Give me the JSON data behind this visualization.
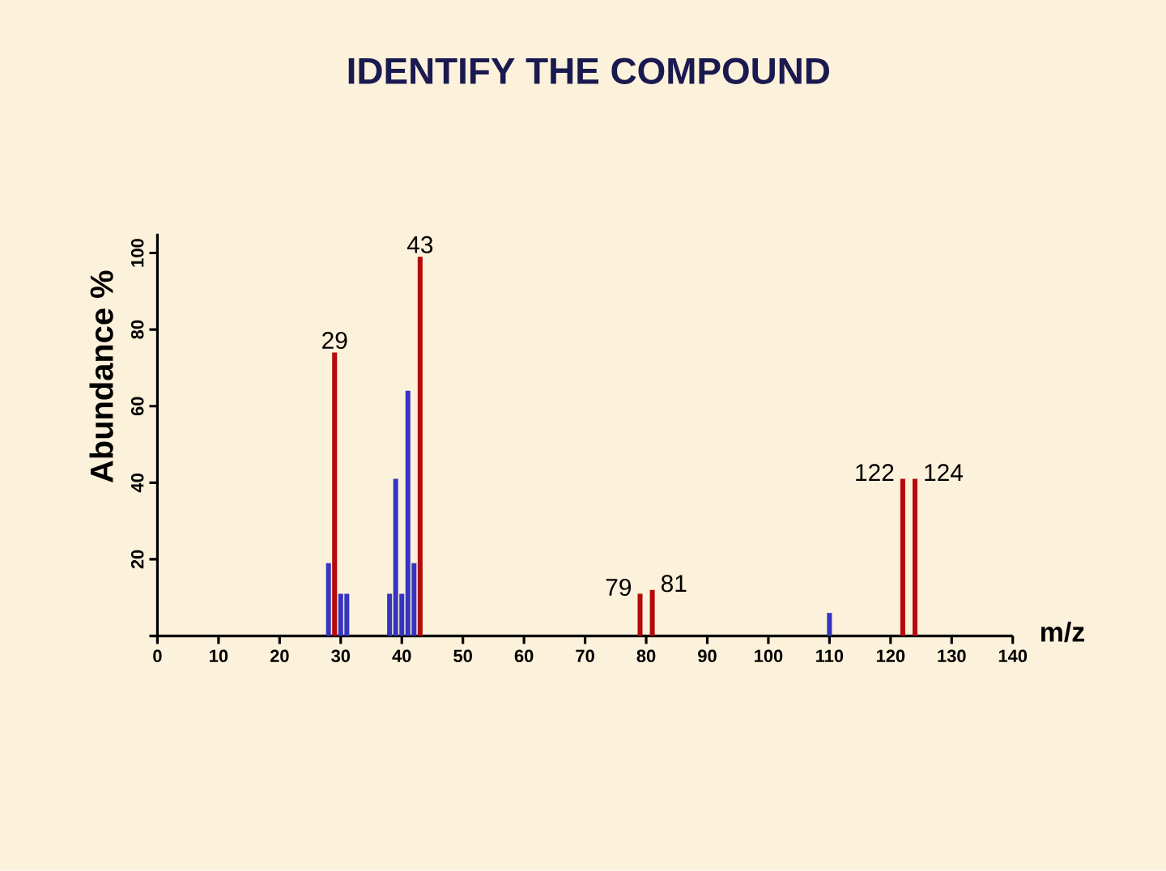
{
  "chart_data": {
    "type": "bar",
    "title": "IDENTIFY THE COMPOUND",
    "xlabel": "m/z",
    "ylabel": "Abundance %",
    "xlim": [
      0,
      140
    ],
    "xticks": [
      0,
      10,
      20,
      30,
      40,
      50,
      60,
      70,
      80,
      90,
      100,
      110,
      120,
      130,
      140
    ],
    "ylim": [
      0,
      105
    ],
    "yticks": [
      {
        "value": 0,
        "label": null
      },
      20,
      40,
      60,
      80,
      100
    ],
    "series": [
      {
        "color": "#b5090b",
        "x": [
          29,
          43,
          79,
          81,
          122,
          124
        ],
        "values": [
          74,
          99,
          11,
          12,
          41,
          41
        ]
      },
      {
        "color": "#3535c0",
        "x": [
          28,
          30,
          31,
          38,
          39,
          40,
          41,
          42,
          110
        ],
        "values": [
          19,
          11,
          11,
          11,
          41,
          11,
          64,
          19,
          6
        ]
      }
    ],
    "annotations": [
      {
        "text": "29",
        "x": 29,
        "y": 74
      },
      {
        "text": "43",
        "x": 43,
        "y": 99
      },
      {
        "text": "79",
        "x": 79,
        "y": 11
      },
      {
        "text": "81",
        "x": 81,
        "y": 12
      },
      {
        "text": "122",
        "x": 122,
        "y": 41
      },
      {
        "text": "124",
        "x": 124,
        "y": 41
      }
    ]
  }
}
